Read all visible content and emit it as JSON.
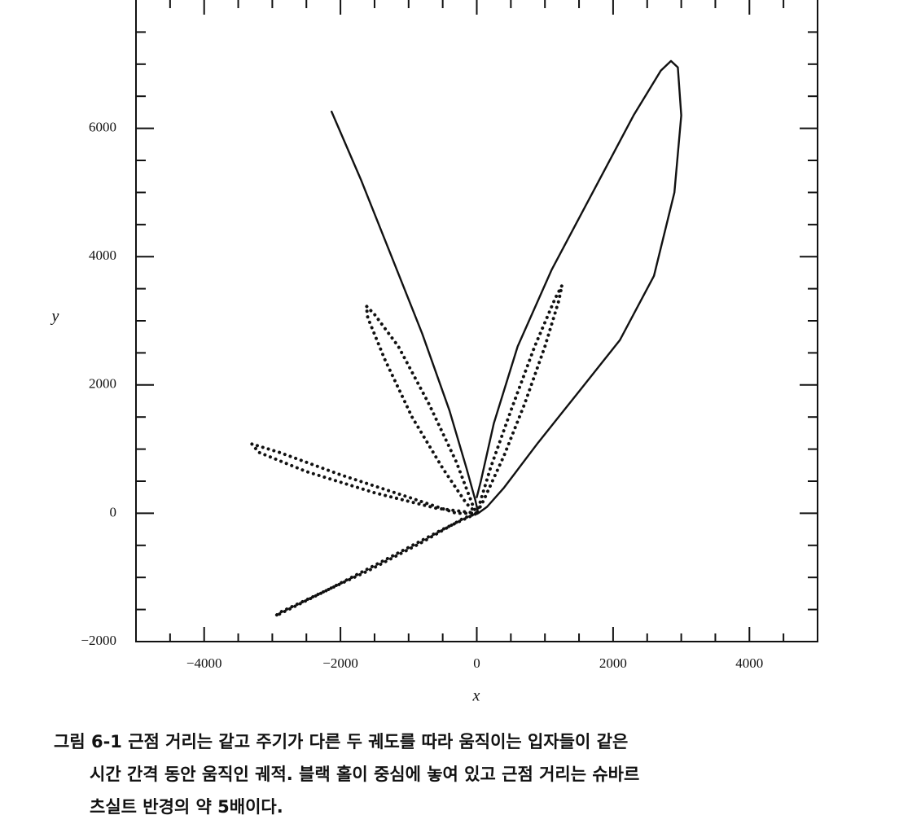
{
  "chart_data": {
    "type": "line",
    "xlabel": "x",
    "ylabel": "y",
    "xlim": [
      -5000,
      5000
    ],
    "ylim": [
      -2000,
      8000
    ],
    "xticks": [
      {
        "value": -4000,
        "label": "−4000"
      },
      {
        "value": -2000,
        "label": "−2000"
      },
      0,
      2000,
      4000
    ],
    "yticks": [
      {
        "value": -2000,
        "label": "−2000"
      },
      0,
      2000,
      4000,
      6000
    ],
    "xminorticks": [
      -4500,
      -3500,
      -3000,
      -2500,
      -1500,
      -1000,
      -500,
      500,
      1000,
      1500,
      2500,
      3000,
      3500,
      4500
    ],
    "yminorticks": [
      -1500,
      -1000,
      -500,
      500,
      1000,
      1500,
      2500,
      3000,
      3500,
      4500,
      5000,
      5500,
      6500,
      7000,
      7500
    ],
    "series": [
      {
        "color": "#111111",
        "dash": "solid",
        "x": [
          -2130,
          -1700,
          -1250,
          -800,
          -400,
          -150,
          -20,
          20,
          150,
          400,
          900,
          1500,
          2100,
          2600,
          2900,
          3000,
          2950,
          2850,
          2700,
          2300,
          1700,
          1100,
          600,
          250,
          60,
          0
        ],
        "values": [
          6260,
          5200,
          4000,
          2800,
          1600,
          700,
          200,
          0,
          100,
          400,
          1100,
          1900,
          2700,
          3700,
          5000,
          6200,
          6950,
          7050,
          6900,
          6200,
          5000,
          3800,
          2600,
          1400,
          500,
          250
        ]
      },
      {
        "color": "#111111",
        "dash": "dotted",
        "x": [
          0,
          200,
          500,
          850,
          1150,
          1250,
          1200,
          1000,
          700,
          400,
          100,
          0,
          -50,
          -300,
          -700,
          -1150,
          -1500,
          -1620,
          -1600,
          -1350,
          -950,
          -500,
          -150,
          0,
          -300,
          -1000,
          -2000,
          -2900,
          -3300,
          -3200,
          -2500,
          -1500,
          -600,
          0,
          -200,
          -800,
          -1600,
          -2400,
          -2900,
          -2950,
          -2800,
          -2200,
          -1300,
          -500,
          0
        ],
        "values": [
          0,
          700,
          1600,
          2600,
          3350,
          3550,
          3300,
          2600,
          1700,
          900,
          200,
          0,
          100,
          800,
          1700,
          2600,
          3100,
          3230,
          3050,
          2400,
          1500,
          700,
          150,
          0,
          0,
          250,
          600,
          950,
          1080,
          950,
          650,
          320,
          80,
          0,
          -80,
          -450,
          -900,
          -1300,
          -1550,
          -1600,
          -1520,
          -1200,
          -700,
          -250,
          0
        ]
      }
    ],
    "caption": [
      "그림 6-1  근점 거리는 같고 주기가 다른 두 궤도를 따라 움직이는 입자들이 같은",
      "시간 간격 동안 움직인 궤적. 블랙 홀이 중심에 놓여 있고 근점 거리는 슈바르",
      "츠실트 반경의 약 5배이다."
    ]
  }
}
